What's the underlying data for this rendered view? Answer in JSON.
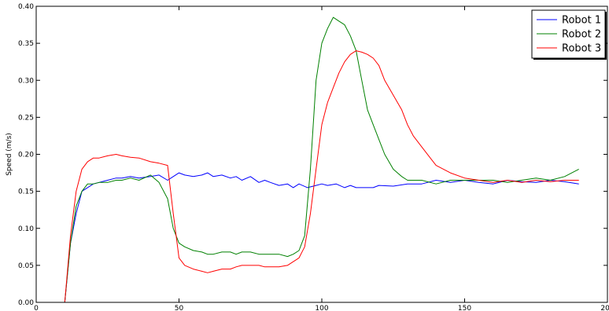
{
  "chart_data": {
    "type": "line",
    "title": "",
    "xlabel": "",
    "ylabel": "Speed (m/s)",
    "xlim": [
      0,
      200
    ],
    "ylim": [
      0,
      0.4
    ],
    "grid": false,
    "legend_position": "top-right",
    "x_ticks": [
      "0",
      "50",
      "100",
      "150",
      "200"
    ],
    "y_ticks": [
      "0.00",
      "0.05",
      "0.10",
      "0.15",
      "0.20",
      "0.25",
      "0.30",
      "0.35",
      "0.40"
    ],
    "series": [
      {
        "name": "Robot 1",
        "color": "#0000ff",
        "x": [
          0,
          10,
          12,
          14,
          16,
          18,
          20,
          22,
          25,
          28,
          30,
          33,
          36,
          40,
          43,
          46,
          48,
          50,
          52,
          55,
          58,
          60,
          62,
          65,
          68,
          70,
          72,
          75,
          78,
          80,
          82,
          85,
          88,
          90,
          92,
          95,
          98,
          100,
          102,
          105,
          108,
          110,
          112,
          115,
          118,
          120,
          125,
          130,
          135,
          140,
          145,
          150,
          155,
          160,
          165,
          170,
          175,
          180,
          185,
          190
        ],
        "y": [
          0,
          0,
          0.08,
          0.12,
          0.15,
          0.155,
          0.16,
          0.162,
          0.165,
          0.168,
          0.168,
          0.17,
          0.168,
          0.17,
          0.172,
          0.165,
          0.17,
          0.175,
          0.172,
          0.17,
          0.172,
          0.175,
          0.17,
          0.172,
          0.168,
          0.17,
          0.165,
          0.17,
          0.162,
          0.165,
          0.162,
          0.158,
          0.16,
          0.155,
          0.16,
          0.155,
          0.158,
          0.16,
          0.158,
          0.16,
          0.155,
          0.158,
          0.155,
          0.155,
          0.155,
          0.158,
          0.157,
          0.16,
          0.16,
          0.165,
          0.162,
          0.165,
          0.162,
          0.16,
          0.165,
          0.163,
          0.162,
          0.165,
          0.163,
          0.16
        ]
      },
      {
        "name": "Robot 2",
        "color": "#008000",
        "x": [
          0,
          10,
          12,
          14,
          16,
          18,
          20,
          22,
          25,
          28,
          30,
          33,
          36,
          40,
          43,
          46,
          48,
          50,
          52,
          55,
          58,
          60,
          62,
          65,
          68,
          70,
          72,
          75,
          78,
          80,
          82,
          85,
          88,
          90,
          92,
          94,
          96,
          98,
          100,
          102,
          104,
          106,
          108,
          110,
          112,
          114,
          116,
          118,
          120,
          122,
          125,
          128,
          130,
          135,
          140,
          145,
          150,
          155,
          160,
          165,
          170,
          175,
          180,
          185,
          190
        ],
        "y": [
          0,
          0,
          0.08,
          0.13,
          0.15,
          0.16,
          0.16,
          0.162,
          0.162,
          0.165,
          0.165,
          0.168,
          0.165,
          0.172,
          0.162,
          0.14,
          0.1,
          0.08,
          0.075,
          0.07,
          0.068,
          0.065,
          0.065,
          0.068,
          0.068,
          0.065,
          0.068,
          0.068,
          0.065,
          0.065,
          0.065,
          0.065,
          0.062,
          0.065,
          0.07,
          0.09,
          0.18,
          0.3,
          0.35,
          0.37,
          0.385,
          0.38,
          0.375,
          0.36,
          0.34,
          0.3,
          0.26,
          0.24,
          0.22,
          0.2,
          0.18,
          0.17,
          0.165,
          0.165,
          0.16,
          0.165,
          0.165,
          0.165,
          0.165,
          0.162,
          0.165,
          0.168,
          0.165,
          0.17,
          0.18
        ]
      },
      {
        "name": "Robot 3",
        "color": "#ff0000",
        "x": [
          0,
          10,
          12,
          14,
          16,
          18,
          20,
          22,
          25,
          28,
          30,
          33,
          36,
          40,
          43,
          46,
          48,
          50,
          52,
          55,
          58,
          60,
          62,
          65,
          68,
          70,
          72,
          75,
          78,
          80,
          82,
          85,
          88,
          90,
          92,
          94,
          96,
          98,
          100,
          102,
          104,
          106,
          108,
          110,
          112,
          114,
          116,
          118,
          120,
          122,
          125,
          128,
          130,
          132,
          135,
          138,
          140,
          145,
          150,
          155,
          160,
          165,
          170,
          175,
          180,
          185,
          190
        ],
        "y": [
          0,
          0,
          0.09,
          0.15,
          0.18,
          0.19,
          0.195,
          0.195,
          0.198,
          0.2,
          0.198,
          0.196,
          0.195,
          0.19,
          0.188,
          0.185,
          0.12,
          0.06,
          0.05,
          0.045,
          0.042,
          0.04,
          0.042,
          0.045,
          0.045,
          0.048,
          0.05,
          0.05,
          0.05,
          0.048,
          0.048,
          0.048,
          0.05,
          0.055,
          0.06,
          0.075,
          0.12,
          0.18,
          0.24,
          0.27,
          0.29,
          0.31,
          0.325,
          0.335,
          0.34,
          0.338,
          0.335,
          0.33,
          0.32,
          0.3,
          0.28,
          0.26,
          0.24,
          0.225,
          0.21,
          0.195,
          0.185,
          0.175,
          0.168,
          0.165,
          0.162,
          0.165,
          0.162,
          0.165,
          0.163,
          0.165,
          0.165
        ]
      }
    ]
  }
}
